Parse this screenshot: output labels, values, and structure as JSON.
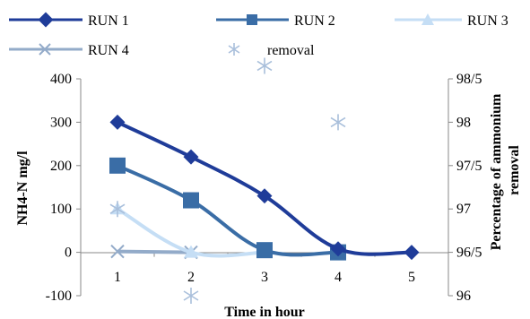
{
  "chart_data": {
    "type": "line",
    "xlabel": "Time in hour",
    "ylabel": "NH4-N mg/l",
    "y2label": "Percentage of ammonium removal",
    "x": [
      1,
      2,
      3,
      4,
      5
    ],
    "xticks": [
      "1",
      "2",
      "3",
      "4",
      "5"
    ],
    "ylim": [
      -100,
      400
    ],
    "yticks": [
      "-100",
      "0",
      "100",
      "200",
      "300",
      "400"
    ],
    "y2lim": [
      96,
      98.5
    ],
    "y2ticks": [
      "96",
      "96/5",
      "97",
      "97/5",
      "98",
      "98/5"
    ],
    "grid": false,
    "legend_position": "top",
    "series": [
      {
        "name": "RUN 1",
        "color": "#1f3c99",
        "marker": "diamond",
        "x": [
          1,
          2,
          3,
          4,
          5
        ],
        "y": [
          300,
          220,
          130,
          8,
          0
        ]
      },
      {
        "name": "RUN 2",
        "color": "#3a6da6",
        "marker": "square",
        "x": [
          1,
          2,
          3,
          4
        ],
        "y": [
          200,
          120,
          5,
          0
        ]
      },
      {
        "name": "RUN 3",
        "color": "#c5def5",
        "marker": "triangle",
        "x": [
          1,
          2,
          3
        ],
        "y": [
          100,
          0,
          0
        ]
      },
      {
        "name": "RUN 4",
        "color": "#93abc9",
        "marker": "x",
        "x": [
          1,
          2
        ],
        "y": [
          2,
          0
        ]
      },
      {
        "name": "removal",
        "color": "#a9bfdb",
        "marker": "star",
        "axis": "right",
        "line": false,
        "x": [
          1,
          2,
          3,
          4
        ],
        "y": [
          97,
          96,
          98.65,
          98
        ]
      }
    ]
  }
}
